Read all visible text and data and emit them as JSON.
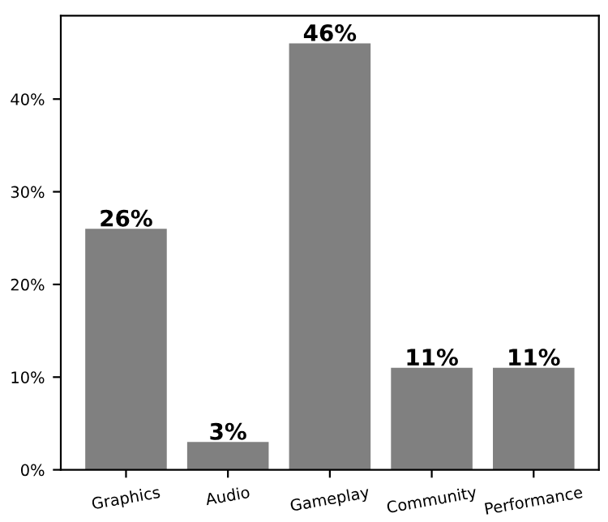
{
  "chart_data": {
    "type": "bar",
    "categories": [
      "Graphics",
      "Audio",
      "Gameplay",
      "Community",
      "Performance"
    ],
    "values": [
      26,
      3,
      46,
      11,
      11
    ],
    "value_labels": [
      "26%",
      "3%",
      "46%",
      "11%",
      "11%"
    ],
    "color": "#808080",
    "ylim": [
      0,
      49
    ],
    "yticks": [
      {
        "value": 0,
        "label": "0%"
      },
      {
        "value": 10,
        "label": "10%"
      },
      {
        "value": 20,
        "label": "20%"
      },
      {
        "value": 30,
        "label": "30%"
      },
      {
        "value": 40,
        "label": "40%"
      }
    ],
    "grid": false,
    "legend": false
  }
}
